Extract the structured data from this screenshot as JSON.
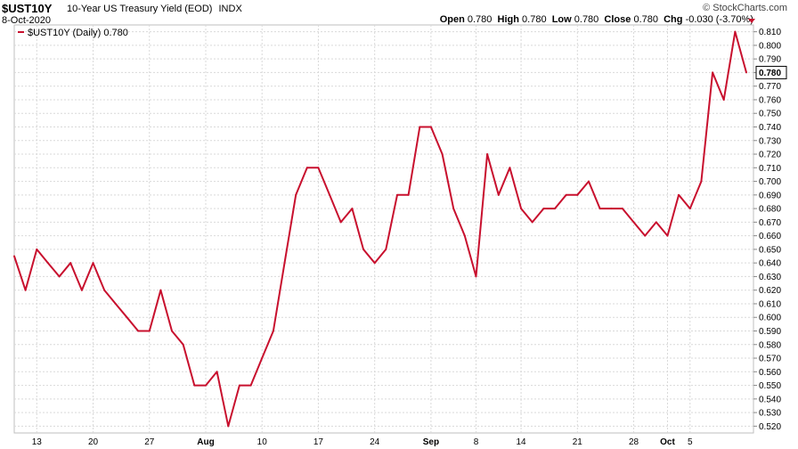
{
  "header": {
    "symbol": "$UST10Y",
    "description": "10-Year US Treasury Yield (EOD)",
    "exchange": "INDX",
    "date": "8-Oct-2020",
    "brand": "© StockCharts.com",
    "open_label": "Open",
    "open": "0.780",
    "high_label": "High",
    "high": "0.780",
    "low_label": "Low",
    "low": "0.780",
    "close_label": "Close",
    "close": "0.780",
    "chg_label": "Chg",
    "chg": "-0.030 (-3.70%)"
  },
  "legend": {
    "text": "$UST10Y (Daily) 0.780"
  },
  "colors": {
    "line": "#c8102e",
    "grid": "#d9d9d9",
    "last_box": "#000000"
  },
  "chart_data": {
    "type": "line",
    "title": "10-Year US Treasury Yield (EOD)",
    "ylim": [
      0.515,
      0.815
    ],
    "y_ticks": [
      "0.520",
      "0.530",
      "0.540",
      "0.550",
      "0.560",
      "0.570",
      "0.580",
      "0.590",
      "0.600",
      "0.610",
      "0.620",
      "0.630",
      "0.640",
      "0.650",
      "0.660",
      "0.670",
      "0.680",
      "0.690",
      "0.700",
      "0.710",
      "0.720",
      "0.730",
      "0.740",
      "0.750",
      "0.760",
      "0.770",
      "0.780",
      "0.790",
      "0.800",
      "0.810"
    ],
    "last_value_label": "0.780",
    "x_ticks": [
      {
        "label": "13",
        "index": 2
      },
      {
        "label": "20",
        "index": 7
      },
      {
        "label": "27",
        "index": 12
      },
      {
        "label": "Aug",
        "index": 17,
        "bold": true
      },
      {
        "label": "10",
        "index": 22
      },
      {
        "label": "17",
        "index": 27
      },
      {
        "label": "24",
        "index": 32
      },
      {
        "label": "Sep",
        "index": 37,
        "bold": true
      },
      {
        "label": "8",
        "index": 41
      },
      {
        "label": "14",
        "index": 45
      },
      {
        "label": "21",
        "index": 50
      },
      {
        "label": "28",
        "index": 55
      },
      {
        "label": "Oct",
        "index": 58,
        "bold": true
      },
      {
        "label": "5",
        "index": 60
      }
    ],
    "series": [
      {
        "values": [
          0.645,
          0.62,
          0.65,
          0.64,
          0.63,
          0.64,
          0.62,
          0.64,
          0.62,
          0.61,
          0.6,
          0.59,
          0.59,
          0.62,
          0.59,
          0.58,
          0.55,
          0.55,
          0.56,
          0.52,
          0.55,
          0.55,
          0.57,
          0.59,
          0.64,
          0.69,
          0.71,
          0.71,
          0.69,
          0.67,
          0.68,
          0.65,
          0.64,
          0.65,
          0.69,
          0.69,
          0.74,
          0.74,
          0.72,
          0.68,
          0.66,
          0.63,
          0.72,
          0.69,
          0.71,
          0.68,
          0.67,
          0.68,
          0.68,
          0.69,
          0.69,
          0.7,
          0.68,
          0.68,
          0.68,
          0.67,
          0.66,
          0.67,
          0.66,
          0.69,
          0.68,
          0.7,
          0.78,
          0.76,
          0.81,
          0.78
        ]
      }
    ]
  }
}
